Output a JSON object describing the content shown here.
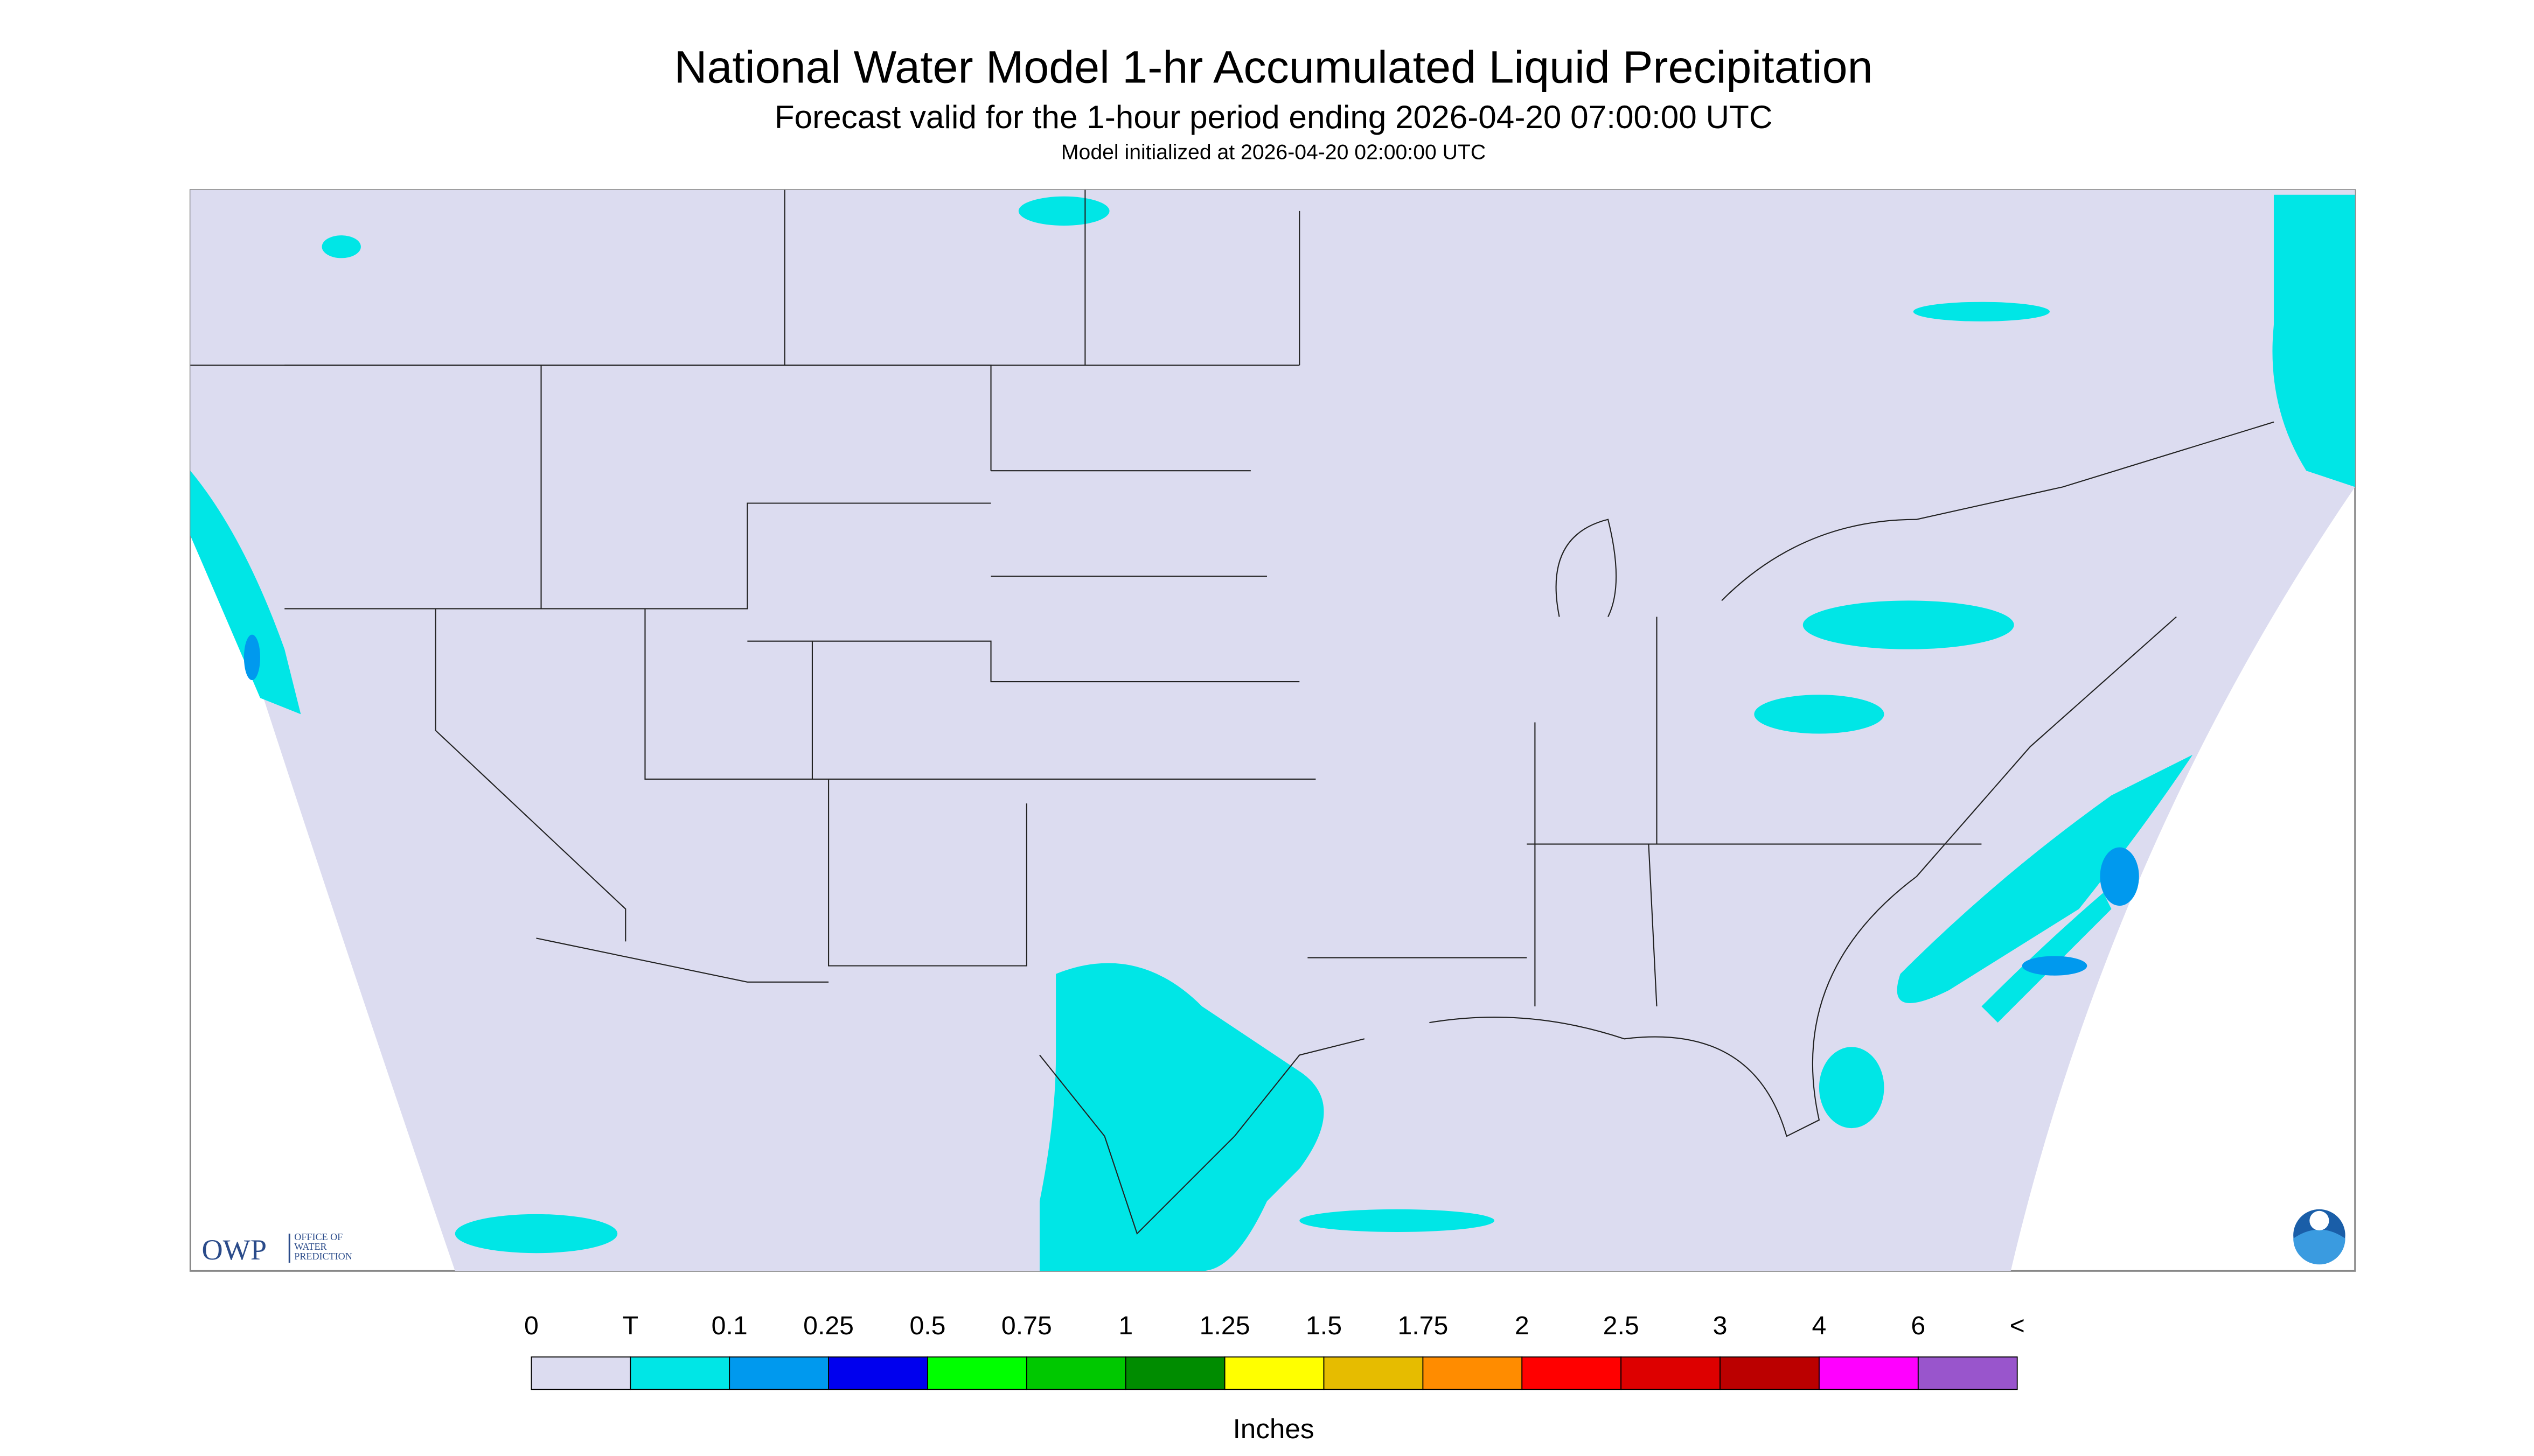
{
  "header": {
    "title": "National Water Model 1-hr Accumulated Liquid Precipitation",
    "subtitle": "Forecast valid for the 1-hour period ending 2026-04-20 07:00:00 UTC",
    "init": "Model initialized at 2026-04-20 02:00:00 UTC"
  },
  "logo": {
    "short": "OWP",
    "line1": "OFFICE OF",
    "line2": "WATER",
    "line3": "PREDICTION"
  },
  "legend": {
    "labels": [
      "0",
      "T",
      "0.1",
      "0.25",
      "0.5",
      "0.75",
      "1",
      "1.25",
      "1.5",
      "1.75",
      "2",
      "2.5",
      "3",
      "4",
      "6",
      "<"
    ],
    "colors": [
      "#dcdcf0",
      "#00e6e6",
      "#0099ee",
      "#0000ee",
      "#00ff00",
      "#00c800",
      "#008c00",
      "#ffff00",
      "#e6bc00",
      "#ff8c00",
      "#ff0000",
      "#dd0000",
      "#bb0000",
      "#ff00ff",
      "#9955cc"
    ],
    "unit": "Inches"
  }
}
